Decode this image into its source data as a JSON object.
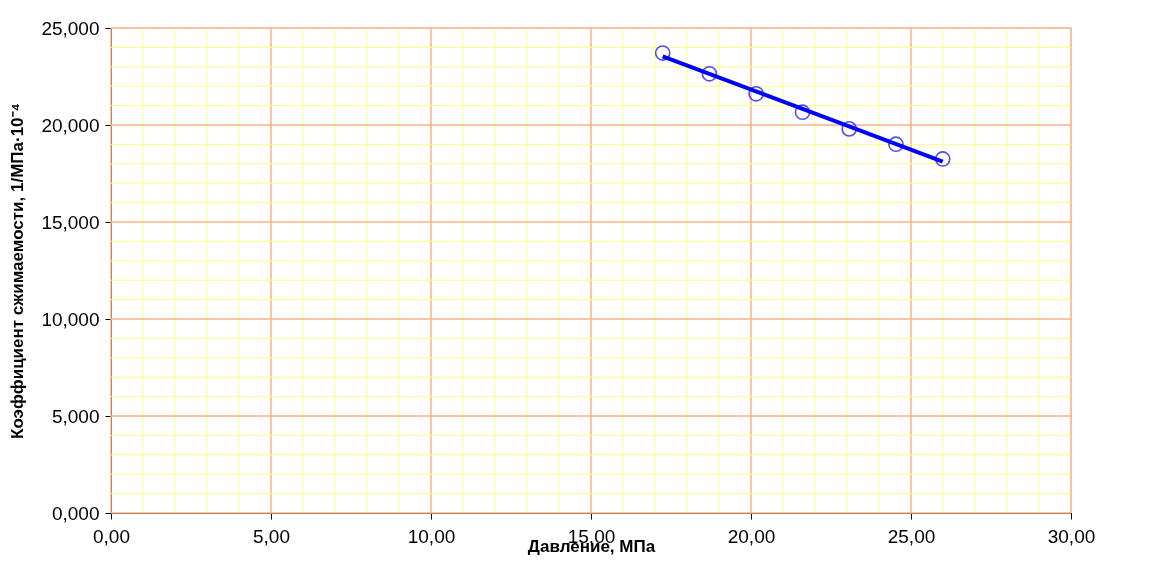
{
  "chart_data": {
    "type": "scatter",
    "xlabel": "Давление, МПа",
    "ylabel": "Коэффициент сжимаемости, 1/МПа·10⁻⁴",
    "xlim": [
      0,
      30
    ],
    "ylim": [
      0,
      25
    ],
    "xticks": [
      {
        "value": 0,
        "label": "0,00"
      },
      {
        "value": 5,
        "label": "5,00"
      },
      {
        "value": 10,
        "label": "10,00"
      },
      {
        "value": 15,
        "label": "15,00"
      },
      {
        "value": 20,
        "label": "20,00"
      },
      {
        "value": 25,
        "label": "25,00"
      },
      {
        "value": 30,
        "label": "30,00"
      }
    ],
    "yticks": [
      {
        "value": 0,
        "label": "0,000"
      },
      {
        "value": 5,
        "label": "5,000"
      },
      {
        "value": 10,
        "label": "10,000"
      },
      {
        "value": 15,
        "label": "15,000"
      },
      {
        "value": 20,
        "label": "20,000"
      },
      {
        "value": 25,
        "label": "25,000"
      }
    ],
    "grid": true,
    "series": [
      {
        "type": "scatter",
        "color": "#0000ff",
        "marker": "circle",
        "x": [
          17.24,
          18.7,
          20.16,
          21.61,
          23.07,
          24.53,
          25.99
        ],
        "values": [
          23.71,
          22.64,
          21.61,
          20.66,
          19.8,
          19.01,
          18.25
        ]
      },
      {
        "type": "line",
        "color": "#0000ff",
        "line_style": "solid",
        "marker": "none",
        "x": [
          17.24,
          25.99
        ],
        "values": [
          23.54,
          18.11
        ]
      }
    ]
  }
}
